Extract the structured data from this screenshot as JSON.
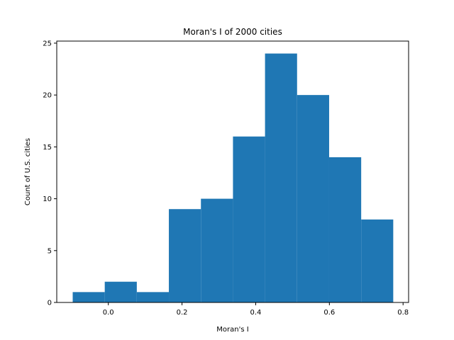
{
  "chart_data": {
    "type": "bar",
    "title": "Moran's I of 2000 cities",
    "xlabel": "Moran's I",
    "ylabel": "Count of U.S. cities",
    "bin_edges": [
      -0.0967,
      -0.0097,
      0.0773,
      0.1643,
      0.2513,
      0.3383,
      0.4253,
      0.5123,
      0.5993,
      0.6863,
      0.7733
    ],
    "values": [
      1,
      2,
      1,
      9,
      10,
      16,
      24,
      20,
      14,
      8
    ],
    "xlim": [
      -0.14,
      0.815
    ],
    "ylim": [
      0,
      25.2
    ],
    "x_ticks": [
      0.0,
      0.2,
      0.4,
      0.6,
      0.8
    ],
    "x_tick_labels": [
      "0.0",
      "0.2",
      "0.4",
      "0.6",
      "0.8"
    ],
    "y_ticks": [
      0,
      5,
      10,
      15,
      20,
      25
    ],
    "y_tick_labels": [
      "0",
      "5",
      "10",
      "15",
      "20",
      "25"
    ],
    "grid": false,
    "legend": false,
    "bar_color": "#1f77b4"
  }
}
